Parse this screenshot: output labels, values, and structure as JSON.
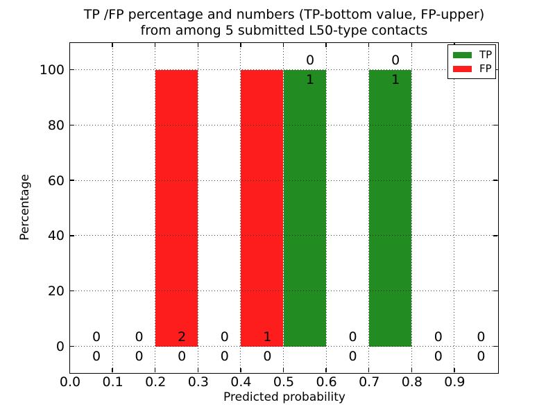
{
  "chart_data": {
    "type": "bar",
    "stacked": true,
    "title_lines": [
      "TP /FP percentage and numbers (TP-bottom value, FP-upper)",
      "from among 5 submitted L50-type contacts"
    ],
    "xlabel": "Predicted probability",
    "ylabel": "Percentage",
    "xlim": [
      0.0,
      1.0
    ],
    "ylim": [
      -10,
      110
    ],
    "xtick_labels": [
      "0.0",
      "0.1",
      "0.2",
      "0.3",
      "0.4",
      "0.5",
      "0.6",
      "0.7",
      "0.8",
      "0.9"
    ],
    "xtick_values": [
      0,
      0.1,
      0.2,
      0.3,
      0.4,
      0.5,
      0.6,
      0.7,
      0.8,
      0.9
    ],
    "ytick_labels": [
      "0",
      "20",
      "40",
      "60",
      "80",
      "100"
    ],
    "ytick_values": [
      0,
      20,
      40,
      60,
      80,
      100
    ],
    "bin_width": 0.1,
    "bin_starts": [
      0,
      0.1,
      0.2,
      0.3,
      0.4,
      0.5,
      0.6,
      0.7,
      0.8,
      0.9
    ],
    "total_submitted_contacts": 5,
    "grid": "dotted",
    "legend": {
      "position": "upper right"
    },
    "series": [
      {
        "name": "TP",
        "color": "#228c22",
        "percent": [
          0,
          0,
          0,
          0,
          0,
          100,
          0,
          100,
          0,
          0
        ],
        "counts": [
          0,
          0,
          0,
          0,
          0,
          1,
          0,
          1,
          0,
          0
        ],
        "label_row": "bottom"
      },
      {
        "name": "FP",
        "color": "#fd1d1d",
        "percent": [
          0,
          0,
          100,
          0,
          100,
          0,
          0,
          0,
          0,
          0
        ],
        "counts": [
          0,
          0,
          2,
          0,
          1,
          0,
          0,
          0,
          0,
          0
        ],
        "label_row": "upper"
      }
    ]
  }
}
